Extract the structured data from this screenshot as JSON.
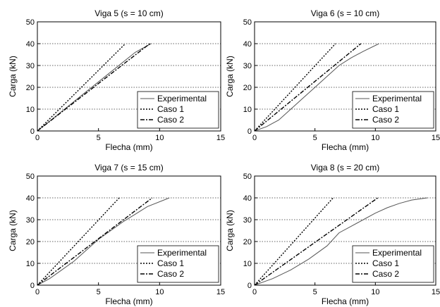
{
  "chart_data": [
    {
      "type": "line",
      "title": "Viga 5 (s = 10 cm)",
      "xlabel": "Flecha (mm)",
      "ylabel": "Carga (kN)",
      "xlim": [
        0,
        15
      ],
      "ylim": [
        0,
        50
      ],
      "xticks": [
        "0",
        "5",
        "10",
        "15"
      ],
      "yticks": [
        "0",
        "10",
        "20",
        "30",
        "40",
        "50"
      ],
      "grid": "horizontal dotted",
      "legend_position": "bottom-right",
      "series": [
        {
          "name": "Experimental",
          "style": "solid",
          "color": "#555555",
          "points": [
            [
              0,
              0
            ],
            [
              2,
              9
            ],
            [
              4,
              18
            ],
            [
              6,
              27
            ],
            [
              8,
              36
            ],
            [
              9.3,
              40
            ]
          ]
        },
        {
          "name": "Caso 1",
          "style": "dotted",
          "color": "#000000",
          "points": [
            [
              0,
              0
            ],
            [
              7.2,
              40
            ]
          ]
        },
        {
          "name": "Caso 2",
          "style": "dashdot",
          "color": "#000000",
          "points": [
            [
              0,
              0
            ],
            [
              9.2,
              40
            ]
          ]
        }
      ]
    },
    {
      "type": "line",
      "title": "Viga 6 (s = 10 cm)",
      "xlabel": "Flecha (mm)",
      "ylabel": "Carga (kN)",
      "xlim": [
        0,
        15
      ],
      "ylim": [
        0,
        50
      ],
      "xticks": [
        "0",
        "5",
        "10",
        "15"
      ],
      "yticks": [
        "0",
        "10",
        "20",
        "30",
        "40",
        "50"
      ],
      "grid": "horizontal dotted",
      "legend_position": "bottom-right",
      "series": [
        {
          "name": "Experimental",
          "style": "solid",
          "color": "#555555",
          "points": [
            [
              0,
              0
            ],
            [
              1,
              2
            ],
            [
              2,
              5
            ],
            [
              3,
              10
            ],
            [
              4,
              15
            ],
            [
              5,
              20
            ],
            [
              6,
              25
            ],
            [
              7,
              30
            ],
            [
              8,
              33.5
            ],
            [
              9,
              36.5
            ],
            [
              10.3,
              40
            ]
          ]
        },
        {
          "name": "Caso 1",
          "style": "dotted",
          "color": "#000000",
          "points": [
            [
              0,
              0
            ],
            [
              6.7,
              40
            ]
          ]
        },
        {
          "name": "Caso 2",
          "style": "dashdot",
          "color": "#000000",
          "points": [
            [
              0,
              0
            ],
            [
              8.8,
              40
            ]
          ]
        }
      ]
    },
    {
      "type": "line",
      "title": "Viga 7 (s = 15 cm)",
      "xlabel": "Flecha (mm)",
      "ylabel": "Carga (kN)",
      "xlim": [
        0,
        15
      ],
      "ylim": [
        0,
        50
      ],
      "xticks": [
        "0",
        "5",
        "10",
        "15"
      ],
      "yticks": [
        "0",
        "10",
        "20",
        "30",
        "40",
        "50"
      ],
      "grid": "horizontal dotted",
      "legend_position": "bottom-right",
      "series": [
        {
          "name": "Experimental",
          "style": "solid",
          "color": "#555555",
          "points": [
            [
              0,
              0
            ],
            [
              1,
              3
            ],
            [
              2,
              7
            ],
            [
              3,
              11
            ],
            [
              4,
              16
            ],
            [
              5,
              21
            ],
            [
              6,
              25
            ],
            [
              7,
              29
            ],
            [
              8,
              32.5
            ],
            [
              9,
              36
            ],
            [
              10.8,
              40
            ]
          ]
        },
        {
          "name": "Caso 1",
          "style": "dotted",
          "color": "#000000",
          "points": [
            [
              0,
              0
            ],
            [
              6.7,
              40
            ]
          ]
        },
        {
          "name": "Caso 2",
          "style": "dashdot",
          "color": "#000000",
          "points": [
            [
              0,
              0
            ],
            [
              9.4,
              40
            ]
          ]
        }
      ]
    },
    {
      "type": "line",
      "title": "Viga 8 (s = 20 cm)",
      "xlabel": "Flecha (mm)",
      "ylabel": "Carga (kN)",
      "xlim": [
        0,
        15
      ],
      "ylim": [
        0,
        50
      ],
      "xticks": [
        "0",
        "5",
        "10",
        "15"
      ],
      "yticks": [
        "0",
        "10",
        "20",
        "30",
        "40",
        "50"
      ],
      "grid": "horizontal dotted",
      "legend_position": "bottom-right",
      "series": [
        {
          "name": "Experimental",
          "style": "solid",
          "color": "#555555",
          "points": [
            [
              0,
              0
            ],
            [
              1.5,
              3
            ],
            [
              3,
              7
            ],
            [
              4.5,
              12
            ],
            [
              6,
              18
            ],
            [
              7,
              24
            ],
            [
              8,
              27
            ],
            [
              9,
              30
            ],
            [
              10,
              33
            ],
            [
              11,
              35.5
            ],
            [
              12,
              37.5
            ],
            [
              13,
              39
            ],
            [
              14.3,
              40
            ]
          ]
        },
        {
          "name": "Caso 1",
          "style": "dotted",
          "color": "#000000",
          "points": [
            [
              0,
              0
            ],
            [
              6.5,
              40
            ]
          ]
        },
        {
          "name": "Caso 2",
          "style": "dashdot",
          "color": "#000000",
          "points": [
            [
              0,
              0
            ],
            [
              10.2,
              40
            ]
          ]
        }
      ]
    }
  ]
}
